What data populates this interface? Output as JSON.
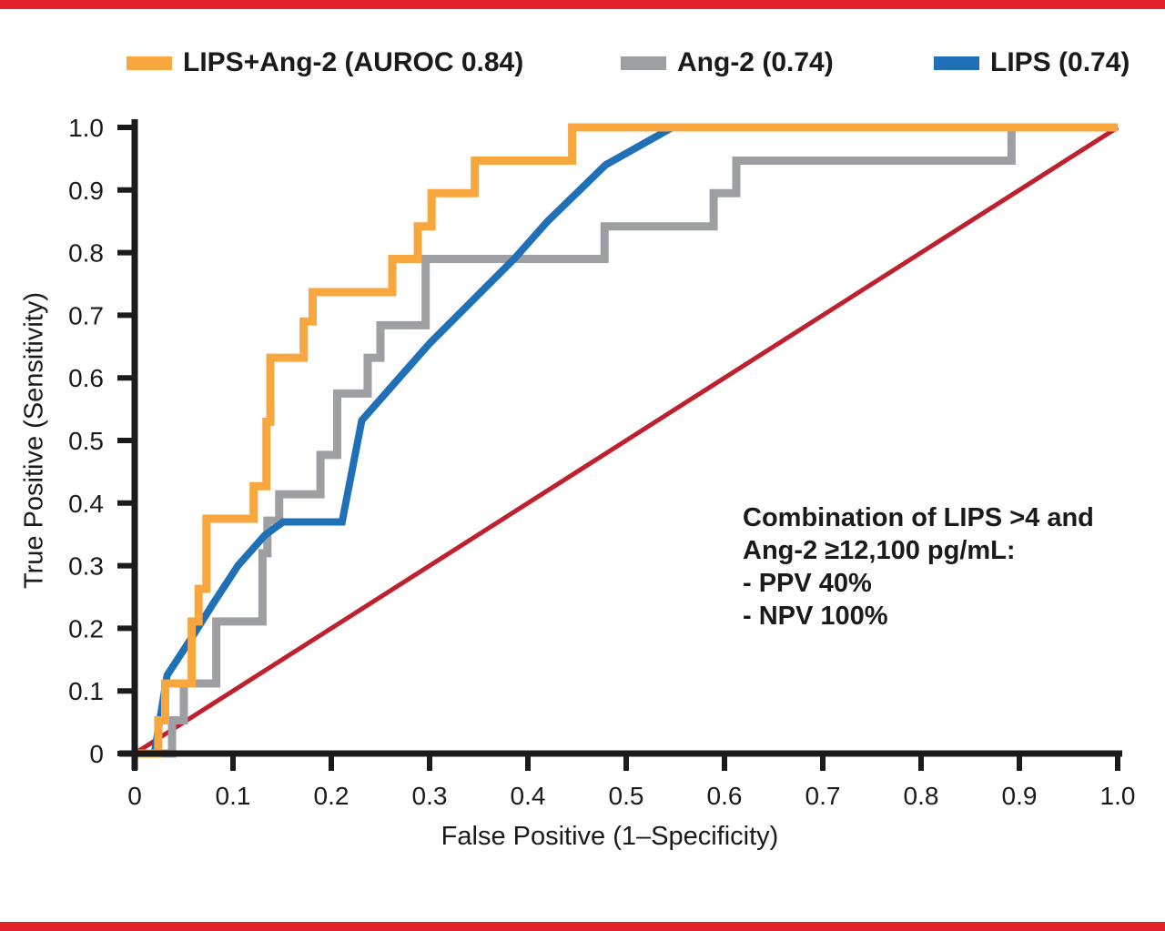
{
  "page": {
    "background": "#ffffff",
    "edge_bar_color": "#e2222a",
    "axis_color": "#1b1b1b",
    "text_color": "#1a1a1a"
  },
  "legend": {
    "items": [
      {
        "name": "lips-ang2",
        "label": "LIPS+Ang-2 (AUROC 0.84)",
        "color": "#f8a63e"
      },
      {
        "name": "ang2",
        "label": "Ang-2 (0.74)",
        "color": "#9d9fa2"
      },
      {
        "name": "lips",
        "label": "LIPS (0.74)",
        "color": "#1f70b6"
      }
    ]
  },
  "axes": {
    "x_label": "False Positive (1–Specificity)",
    "y_label": "True Positive (Sensitivity)",
    "x_tick_labels": [
      "0",
      "0.1",
      "0.2",
      "0.3",
      "0.4",
      "0.5",
      "0.6",
      "0.7",
      "0.8",
      "0.9",
      "1.0"
    ],
    "x_tick_values": [
      0,
      0.1,
      0.2,
      0.3,
      0.4,
      0.5,
      0.6,
      0.7,
      0.8,
      0.9,
      1.0
    ],
    "y_tick_labels": [
      "0",
      "0.1",
      "0.2",
      "0.3",
      "0.4",
      "0.5",
      "0.6",
      "0.7",
      "0.8",
      "0.9",
      "1.0"
    ],
    "y_tick_values": [
      0,
      0.1,
      0.2,
      0.3,
      0.4,
      0.5,
      0.6,
      0.7,
      0.8,
      0.9,
      1.0
    ]
  },
  "annotation": {
    "lines": [
      "Combination of LIPS >4 and",
      "Ang-2 ≥12,100 pg/mL:",
      "- PPV 40%",
      "- NPV 100%"
    ]
  },
  "chart_data": {
    "type": "line",
    "title": "",
    "xlabel": "False Positive (1–Specificity)",
    "ylabel": "True Positive (Sensitivity)",
    "xlim": [
      0,
      1.0
    ],
    "ylim": [
      0,
      1.0
    ],
    "grid": false,
    "legend_position": "top",
    "reference_line": {
      "name": "chance-diagonal",
      "color": "#be202e",
      "width": 5,
      "points": [
        [
          0,
          0
        ],
        [
          1,
          1
        ]
      ]
    },
    "series": [
      {
        "name": "Ang-2 (0.74)",
        "auroc": 0.74,
        "color": "#9d9fa2",
        "width": 9,
        "points": [
          [
            0,
            0
          ],
          [
            0.038,
            0
          ],
          [
            0.038,
            0.053
          ],
          [
            0.05,
            0.053
          ],
          [
            0.05,
            0.112
          ],
          [
            0.083,
            0.112
          ],
          [
            0.083,
            0.211
          ],
          [
            0.13,
            0.211
          ],
          [
            0.13,
            0.32
          ],
          [
            0.135,
            0.32
          ],
          [
            0.135,
            0.372
          ],
          [
            0.147,
            0.372
          ],
          [
            0.147,
            0.414
          ],
          [
            0.189,
            0.414
          ],
          [
            0.189,
            0.477
          ],
          [
            0.206,
            0.477
          ],
          [
            0.206,
            0.575
          ],
          [
            0.237,
            0.575
          ],
          [
            0.237,
            0.632
          ],
          [
            0.25,
            0.632
          ],
          [
            0.25,
            0.684
          ],
          [
            0.296,
            0.684
          ],
          [
            0.296,
            0.79
          ],
          [
            0.478,
            0.79
          ],
          [
            0.478,
            0.842
          ],
          [
            0.589,
            0.842
          ],
          [
            0.589,
            0.895
          ],
          [
            0.612,
            0.895
          ],
          [
            0.612,
            0.947
          ],
          [
            0.892,
            0.947
          ],
          [
            0.892,
            1
          ],
          [
            1,
            1
          ]
        ]
      },
      {
        "name": "LIPS (0.74)",
        "auroc": 0.74,
        "color": "#1f70b6",
        "width": 8,
        "points": [
          [
            0,
            0
          ],
          [
            0.02,
            0
          ],
          [
            0.033,
            0.125
          ],
          [
            0.06,
            0.19
          ],
          [
            0.08,
            0.24
          ],
          [
            0.105,
            0.3
          ],
          [
            0.132,
            0.348
          ],
          [
            0.151,
            0.37
          ],
          [
            0.211,
            0.37
          ],
          [
            0.231,
            0.532
          ],
          [
            0.3,
            0.655
          ],
          [
            0.386,
            0.79
          ],
          [
            0.42,
            0.85
          ],
          [
            0.479,
            0.94
          ],
          [
            0.547,
            1
          ],
          [
            1,
            1
          ]
        ]
      },
      {
        "name": "LIPS+Ang-2 (AUROC 0.84)",
        "auroc": 0.84,
        "color": "#f8a63e",
        "width": 9,
        "points": [
          [
            0,
            0
          ],
          [
            0.024,
            0
          ],
          [
            0.024,
            0.053
          ],
          [
            0.031,
            0.053
          ],
          [
            0.031,
            0.112
          ],
          [
            0.058,
            0.112
          ],
          [
            0.058,
            0.211
          ],
          [
            0.065,
            0.211
          ],
          [
            0.065,
            0.263
          ],
          [
            0.073,
            0.263
          ],
          [
            0.073,
            0.375
          ],
          [
            0.121,
            0.375
          ],
          [
            0.121,
            0.427
          ],
          [
            0.134,
            0.427
          ],
          [
            0.134,
            0.53
          ],
          [
            0.138,
            0.53
          ],
          [
            0.138,
            0.632
          ],
          [
            0.172,
            0.632
          ],
          [
            0.172,
            0.69
          ],
          [
            0.181,
            0.69
          ],
          [
            0.181,
            0.737
          ],
          [
            0.262,
            0.737
          ],
          [
            0.262,
            0.79
          ],
          [
            0.288,
            0.79
          ],
          [
            0.288,
            0.842
          ],
          [
            0.302,
            0.842
          ],
          [
            0.302,
            0.895
          ],
          [
            0.346,
            0.895
          ],
          [
            0.346,
            0.947
          ],
          [
            0.445,
            0.947
          ],
          [
            0.445,
            1
          ],
          [
            1,
            1
          ]
        ]
      }
    ]
  }
}
